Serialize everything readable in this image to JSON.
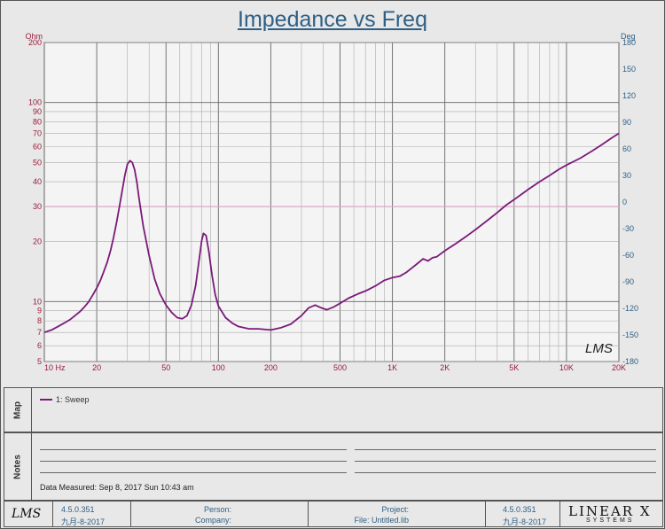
{
  "chart_data": {
    "type": "line",
    "title": "Impedance vs Freq",
    "y_unit": "Ohm",
    "y2_unit": "Deg",
    "x_scale": "log",
    "y_scale": "log",
    "xlim": [
      10,
      20000
    ],
    "ylim": [
      5,
      200
    ],
    "y2lim": [
      -180,
      180
    ],
    "x_ticks": [
      {
        "v": 10,
        "label": "10  Hz"
      },
      {
        "v": 20,
        "label": "20"
      },
      {
        "v": 50,
        "label": "50"
      },
      {
        "v": 100,
        "label": "100"
      },
      {
        "v": 200,
        "label": "200"
      },
      {
        "v": 500,
        "label": "500"
      },
      {
        "v": 1000,
        "label": "1K"
      },
      {
        "v": 2000,
        "label": "2K"
      },
      {
        "v": 5000,
        "label": "5K"
      },
      {
        "v": 10000,
        "label": "10K"
      },
      {
        "v": 20000,
        "label": "20K"
      }
    ],
    "y_ticks": [
      {
        "v": 5,
        "label": "5"
      },
      {
        "v": 6,
        "label": "6"
      },
      {
        "v": 7,
        "label": "7"
      },
      {
        "v": 8,
        "label": "8"
      },
      {
        "v": 9,
        "label": "9"
      },
      {
        "v": 10,
        "label": "10"
      },
      {
        "v": 20,
        "label": "20"
      },
      {
        "v": 30,
        "label": "30"
      },
      {
        "v": 40,
        "label": "40"
      },
      {
        "v": 50,
        "label": "50"
      },
      {
        "v": 60,
        "label": "60"
      },
      {
        "v": 70,
        "label": "70"
      },
      {
        "v": 80,
        "label": "80"
      },
      {
        "v": 90,
        "label": "90"
      },
      {
        "v": 100,
        "label": "100"
      },
      {
        "v": 200,
        "label": "200"
      }
    ],
    "y2_ticks": [
      -180,
      -150,
      -120,
      -90,
      -60,
      -30,
      0,
      30,
      60,
      90,
      120,
      150,
      180
    ],
    "reference_line_y": 30,
    "series": [
      {
        "name": "1: Sweep",
        "color": "#7a1a78",
        "points": [
          [
            10,
            7.0
          ],
          [
            11,
            7.2
          ],
          [
            12,
            7.5
          ],
          [
            13,
            7.8
          ],
          [
            14,
            8.1
          ],
          [
            15,
            8.5
          ],
          [
            16,
            8.9
          ],
          [
            17,
            9.4
          ],
          [
            18,
            10.0
          ],
          [
            19,
            10.8
          ],
          [
            20,
            11.7
          ],
          [
            21,
            12.8
          ],
          [
            22,
            14.2
          ],
          [
            23,
            15.8
          ],
          [
            24,
            18.0
          ],
          [
            25,
            21.0
          ],
          [
            26,
            25.0
          ],
          [
            27,
            30.0
          ],
          [
            28,
            36.0
          ],
          [
            29,
            43.0
          ],
          [
            30,
            49.0
          ],
          [
            31,
            51.0
          ],
          [
            32,
            50.0
          ],
          [
            33,
            46.0
          ],
          [
            34,
            40.0
          ],
          [
            35,
            33.0
          ],
          [
            37,
            24.0
          ],
          [
            40,
            17.0
          ],
          [
            43,
            13.0
          ],
          [
            46,
            11.0
          ],
          [
            50,
            9.6
          ],
          [
            54,
            8.8
          ],
          [
            58,
            8.3
          ],
          [
            62,
            8.2
          ],
          [
            66,
            8.5
          ],
          [
            70,
            9.6
          ],
          [
            74,
            12.0
          ],
          [
            77,
            15.5
          ],
          [
            80,
            20.0
          ],
          [
            82,
            22.0
          ],
          [
            85,
            21.5
          ],
          [
            88,
            18.0
          ],
          [
            92,
            13.5
          ],
          [
            96,
            10.8
          ],
          [
            100,
            9.5
          ],
          [
            110,
            8.3
          ],
          [
            120,
            7.8
          ],
          [
            130,
            7.5
          ],
          [
            150,
            7.3
          ],
          [
            170,
            7.3
          ],
          [
            200,
            7.2
          ],
          [
            230,
            7.4
          ],
          [
            260,
            7.7
          ],
          [
            300,
            8.5
          ],
          [
            330,
            9.3
          ],
          [
            360,
            9.6
          ],
          [
            390,
            9.3
          ],
          [
            420,
            9.1
          ],
          [
            460,
            9.4
          ],
          [
            500,
            9.8
          ],
          [
            560,
            10.4
          ],
          [
            630,
            10.9
          ],
          [
            700,
            11.3
          ],
          [
            800,
            12.0
          ],
          [
            900,
            12.8
          ],
          [
            1000,
            13.2
          ],
          [
            1100,
            13.4
          ],
          [
            1200,
            14.0
          ],
          [
            1300,
            14.8
          ],
          [
            1400,
            15.6
          ],
          [
            1500,
            16.4
          ],
          [
            1600,
            16.0
          ],
          [
            1700,
            16.6
          ],
          [
            1800,
            16.8
          ],
          [
            2000,
            18.0
          ],
          [
            2300,
            19.5
          ],
          [
            2700,
            21.5
          ],
          [
            3000,
            23.0
          ],
          [
            3500,
            25.5
          ],
          [
            4000,
            28.0
          ],
          [
            4500,
            30.5
          ],
          [
            5000,
            32.5
          ],
          [
            6000,
            36.5
          ],
          [
            7000,
            40.0
          ],
          [
            8000,
            43.0
          ],
          [
            9000,
            46.0
          ],
          [
            10000,
            48.5
          ],
          [
            12000,
            52.5
          ],
          [
            14000,
            57.0
          ],
          [
            16000,
            61.5
          ],
          [
            18000,
            66.0
          ],
          [
            20000,
            70.0
          ]
        ]
      }
    ],
    "watermark": "LMS"
  },
  "map": {
    "label": "Map",
    "legend_entry": "1: Sweep"
  },
  "notes": {
    "label": "Notes",
    "measured": "Data Measured: Sep 8, 2017 Sun 10:43 am"
  },
  "footer": {
    "logo_left": "LMS",
    "version1": "4.5.0.351",
    "date1": "九月-8-2017",
    "person_label": "Person:",
    "company_label": "Company:",
    "project_label": "Project:",
    "file_label": "File: Untitled.lib",
    "version2": "4.5.0.351",
    "date2": "九月-8-2017",
    "brand": "LINEAR X",
    "brand_sub": "SYSTEMS"
  }
}
